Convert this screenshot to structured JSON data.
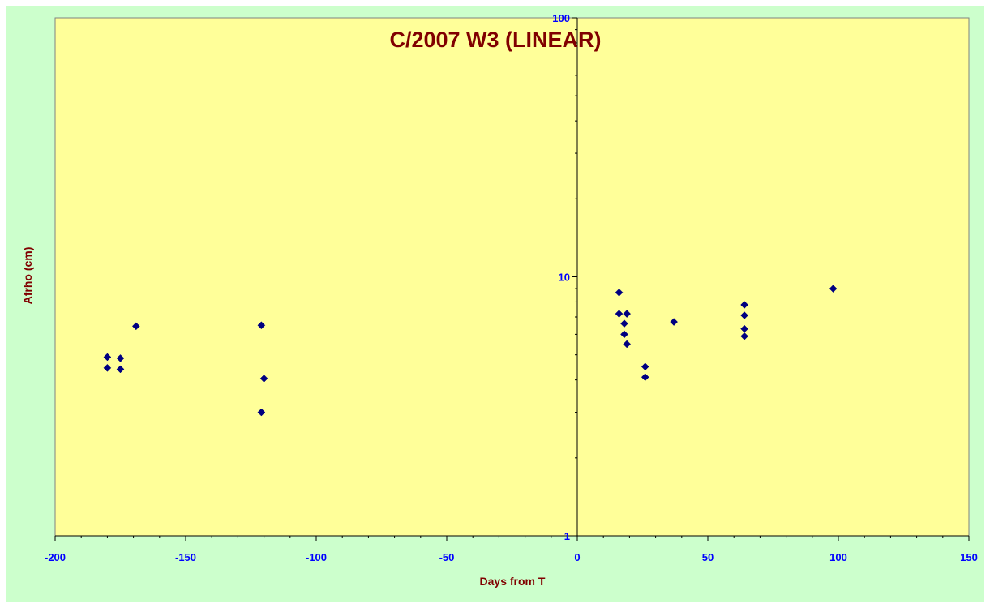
{
  "chart_data": {
    "type": "scatter",
    "title": "C/2007 W3 (LINEAR)",
    "xlabel": "Days from T",
    "ylabel": "Afrho (cm)",
    "xlim": [
      -200,
      150
    ],
    "ylim": [
      1,
      100
    ],
    "y_scale": "log",
    "x_ticks": [
      -200,
      -150,
      -100,
      -50,
      0,
      50,
      100,
      150
    ],
    "x_tick_labels": [
      "-200",
      "-150",
      "-100",
      "-50",
      "0",
      "50",
      "100",
      "150"
    ],
    "y_ticks": [
      1,
      10,
      100
    ],
    "y_tick_labels": [
      "1",
      "10",
      "100"
    ],
    "grid": false,
    "legend": "none",
    "series": [
      {
        "marker": "diamond",
        "points": [
          {
            "x": -180,
            "y": 4.9
          },
          {
            "x": -180,
            "y": 4.45
          },
          {
            "x": -175,
            "y": 4.85
          },
          {
            "x": -175,
            "y": 4.4
          },
          {
            "x": -169,
            "y": 6.45
          },
          {
            "x": -121,
            "y": 6.5
          },
          {
            "x": -120,
            "y": 4.05
          },
          {
            "x": -121,
            "y": 3.0
          },
          {
            "x": 16,
            "y": 8.7
          },
          {
            "x": 16,
            "y": 7.2
          },
          {
            "x": 19,
            "y": 7.2
          },
          {
            "x": 18,
            "y": 6.6
          },
          {
            "x": 18,
            "y": 6.0
          },
          {
            "x": 19,
            "y": 5.5
          },
          {
            "x": 26,
            "y": 4.5
          },
          {
            "x": 26,
            "y": 4.1
          },
          {
            "x": 37,
            "y": 6.7
          },
          {
            "x": 64,
            "y": 7.8
          },
          {
            "x": 64,
            "y": 7.1
          },
          {
            "x": 64,
            "y": 6.3
          },
          {
            "x": 64,
            "y": 5.9
          },
          {
            "x": 98,
            "y": 9.0
          }
        ]
      }
    ],
    "colors": {
      "background": "#ccffcc",
      "plot_background": "#ffff99",
      "marker": "#000080",
      "tick_labels": "#0000ff",
      "titles": "#800000"
    }
  }
}
